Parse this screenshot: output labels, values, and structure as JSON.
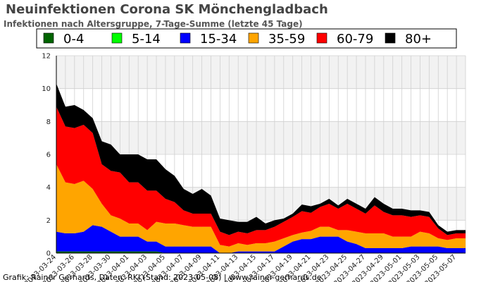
{
  "chart_data": {
    "type": "area",
    "stacked": true,
    "title": "Neuinfektionen Corona SK Mönchengladbach",
    "subtitle": "Infektionen nach Altersgruppe, 7-Tage-Summe (letzte 45 Tage)",
    "footer": "Grafik: Rainer Gerhards, Daten: RKI (Stand: 2023-05-08) | www.rainer-gerhards.de",
    "x": [
      "2023-03-24",
      "2023-03-25",
      "2023-03-26",
      "2023-03-27",
      "2023-03-28",
      "2023-03-29",
      "2023-03-30",
      "2023-03-31",
      "2023-04-01",
      "2023-04-02",
      "2023-04-03",
      "2023-04-04",
      "2023-04-05",
      "2023-04-06",
      "2023-04-07",
      "2023-04-08",
      "2023-04-09",
      "2023-04-10",
      "2023-04-11",
      "2023-04-12",
      "2023-04-13",
      "2023-04-14",
      "2023-04-15",
      "2023-04-16",
      "2023-04-17",
      "2023-04-18",
      "2023-04-19",
      "2023-04-20",
      "2023-04-21",
      "2023-04-22",
      "2023-04-23",
      "2023-04-24",
      "2023-04-25",
      "2023-04-26",
      "2023-04-27",
      "2023-04-28",
      "2023-04-29",
      "2023-04-30",
      "2023-05-01",
      "2023-05-02",
      "2023-05-03",
      "2023-05-04",
      "2023-05-05",
      "2023-05-06",
      "2023-05-07",
      "2023-05-08"
    ],
    "x_tick_labels": [
      "2023-03-24",
      "2023-03-26",
      "2023-03-28",
      "2023-03-30",
      "2023-04-01",
      "2023-04-03",
      "2023-04-05",
      "2023-04-07",
      "2023-04-09",
      "2023-04-11",
      "2023-04-13",
      "2023-04-15",
      "2023-04-17",
      "2023-04-19",
      "2023-04-21",
      "2023-04-23",
      "2023-04-25",
      "2023-04-27",
      "2023-04-29",
      "2023-05-01",
      "2023-05-03",
      "2023-05-05",
      "2023-05-07"
    ],
    "y_ticks": [
      0,
      2,
      4,
      6,
      8,
      10,
      12
    ],
    "ylim": [
      0,
      12
    ],
    "grid": true,
    "legend_position": "top",
    "series": [
      {
        "name": "0-4",
        "color": "#006400",
        "values": [
          0.1,
          0.1,
          0.1,
          0.1,
          0.1,
          0.1,
          0.1,
          0.1,
          0.1,
          0.1,
          0.1,
          0.1,
          0,
          0,
          0,
          0,
          0,
          0,
          0,
          0,
          0,
          0,
          0,
          0,
          0,
          0,
          0,
          0,
          0,
          0,
          0,
          0,
          0,
          0,
          0,
          0,
          0,
          0,
          0,
          0,
          0,
          0,
          0,
          0,
          0,
          0
        ]
      },
      {
        "name": "5-14",
        "color": "#00ff00",
        "values": [
          0,
          0,
          0,
          0,
          0,
          0,
          0,
          0,
          0,
          0,
          0,
          0,
          0,
          0,
          0,
          0,
          0,
          0,
          0,
          0,
          0,
          0,
          0,
          0,
          0,
          0,
          0,
          0,
          0,
          0,
          0,
          0,
          0,
          0,
          0,
          0,
          0,
          0,
          0,
          0,
          0,
          0,
          0,
          0,
          0,
          0
        ]
      },
      {
        "name": "15-34",
        "color": "#0000ff",
        "values": [
          1.2,
          1.1,
          1.1,
          1.2,
          1.6,
          1.5,
          1.2,
          0.9,
          0.9,
          0.9,
          0.6,
          0.6,
          0.4,
          0.4,
          0.4,
          0.4,
          0.4,
          0.4,
          0,
          0,
          0.1,
          0.1,
          0.1,
          0.1,
          0.1,
          0.4,
          0.7,
          0.85,
          0.85,
          1.0,
          1.0,
          1.0,
          0.7,
          0.55,
          0.3,
          0.3,
          0.3,
          0.3,
          0.3,
          0.4,
          0.4,
          0.4,
          0.4,
          0.3,
          0.3,
          0.3
        ]
      },
      {
        "name": "35-59",
        "color": "#ffa500",
        "values": [
          4.1,
          3.1,
          3.0,
          3.1,
          2.2,
          1.4,
          1.0,
          1.1,
          0.8,
          0.8,
          0.7,
          1.2,
          1.4,
          1.4,
          1.3,
          1.2,
          1.2,
          1.2,
          0.5,
          0.4,
          0.5,
          0.4,
          0.5,
          0.5,
          0.6,
          0.5,
          0.4,
          0.4,
          0.5,
          0.6,
          0.6,
          0.4,
          0.7,
          0.75,
          0.9,
          0.9,
          0.9,
          0.7,
          0.7,
          0.6,
          0.9,
          0.8,
          0.5,
          0.5,
          0.6,
          0.6
        ]
      },
      {
        "name": "60-79",
        "color": "#ff0000",
        "values": [
          3.5,
          3.4,
          3.4,
          3.4,
          3.4,
          2.4,
          2.7,
          2.8,
          2.5,
          2.5,
          2.4,
          1.9,
          1.5,
          1.3,
          0.9,
          0.8,
          0.8,
          0.8,
          0.8,
          0.7,
          0.7,
          0.7,
          0.8,
          0.8,
          0.9,
          1.0,
          1.1,
          1.3,
          1.1,
          1.2,
          1.4,
          1.3,
          1.6,
          1.4,
          1.2,
          1.7,
          1.3,
          1.3,
          1.3,
          1.2,
          1.0,
          1.0,
          0.6,
          0.3,
          0.3,
          0.3
        ]
      },
      {
        "name": "80+",
        "color": "#000000",
        "values": [
          1.4,
          1.2,
          1.4,
          0.9,
          0.9,
          1.4,
          1.6,
          1.1,
          1.7,
          1.7,
          1.9,
          1.9,
          1.8,
          1.6,
          1.3,
          1.2,
          1.5,
          1.1,
          0.8,
          0.9,
          0.6,
          0.7,
          0.8,
          0.4,
          0.4,
          0.2,
          0.2,
          0.4,
          0.4,
          0.2,
          0.3,
          0.2,
          0.3,
          0.3,
          0.3,
          0.5,
          0.5,
          0.4,
          0.4,
          0.4,
          0.3,
          0.3,
          0.2,
          0.2,
          0.2,
          0.2
        ]
      }
    ]
  }
}
